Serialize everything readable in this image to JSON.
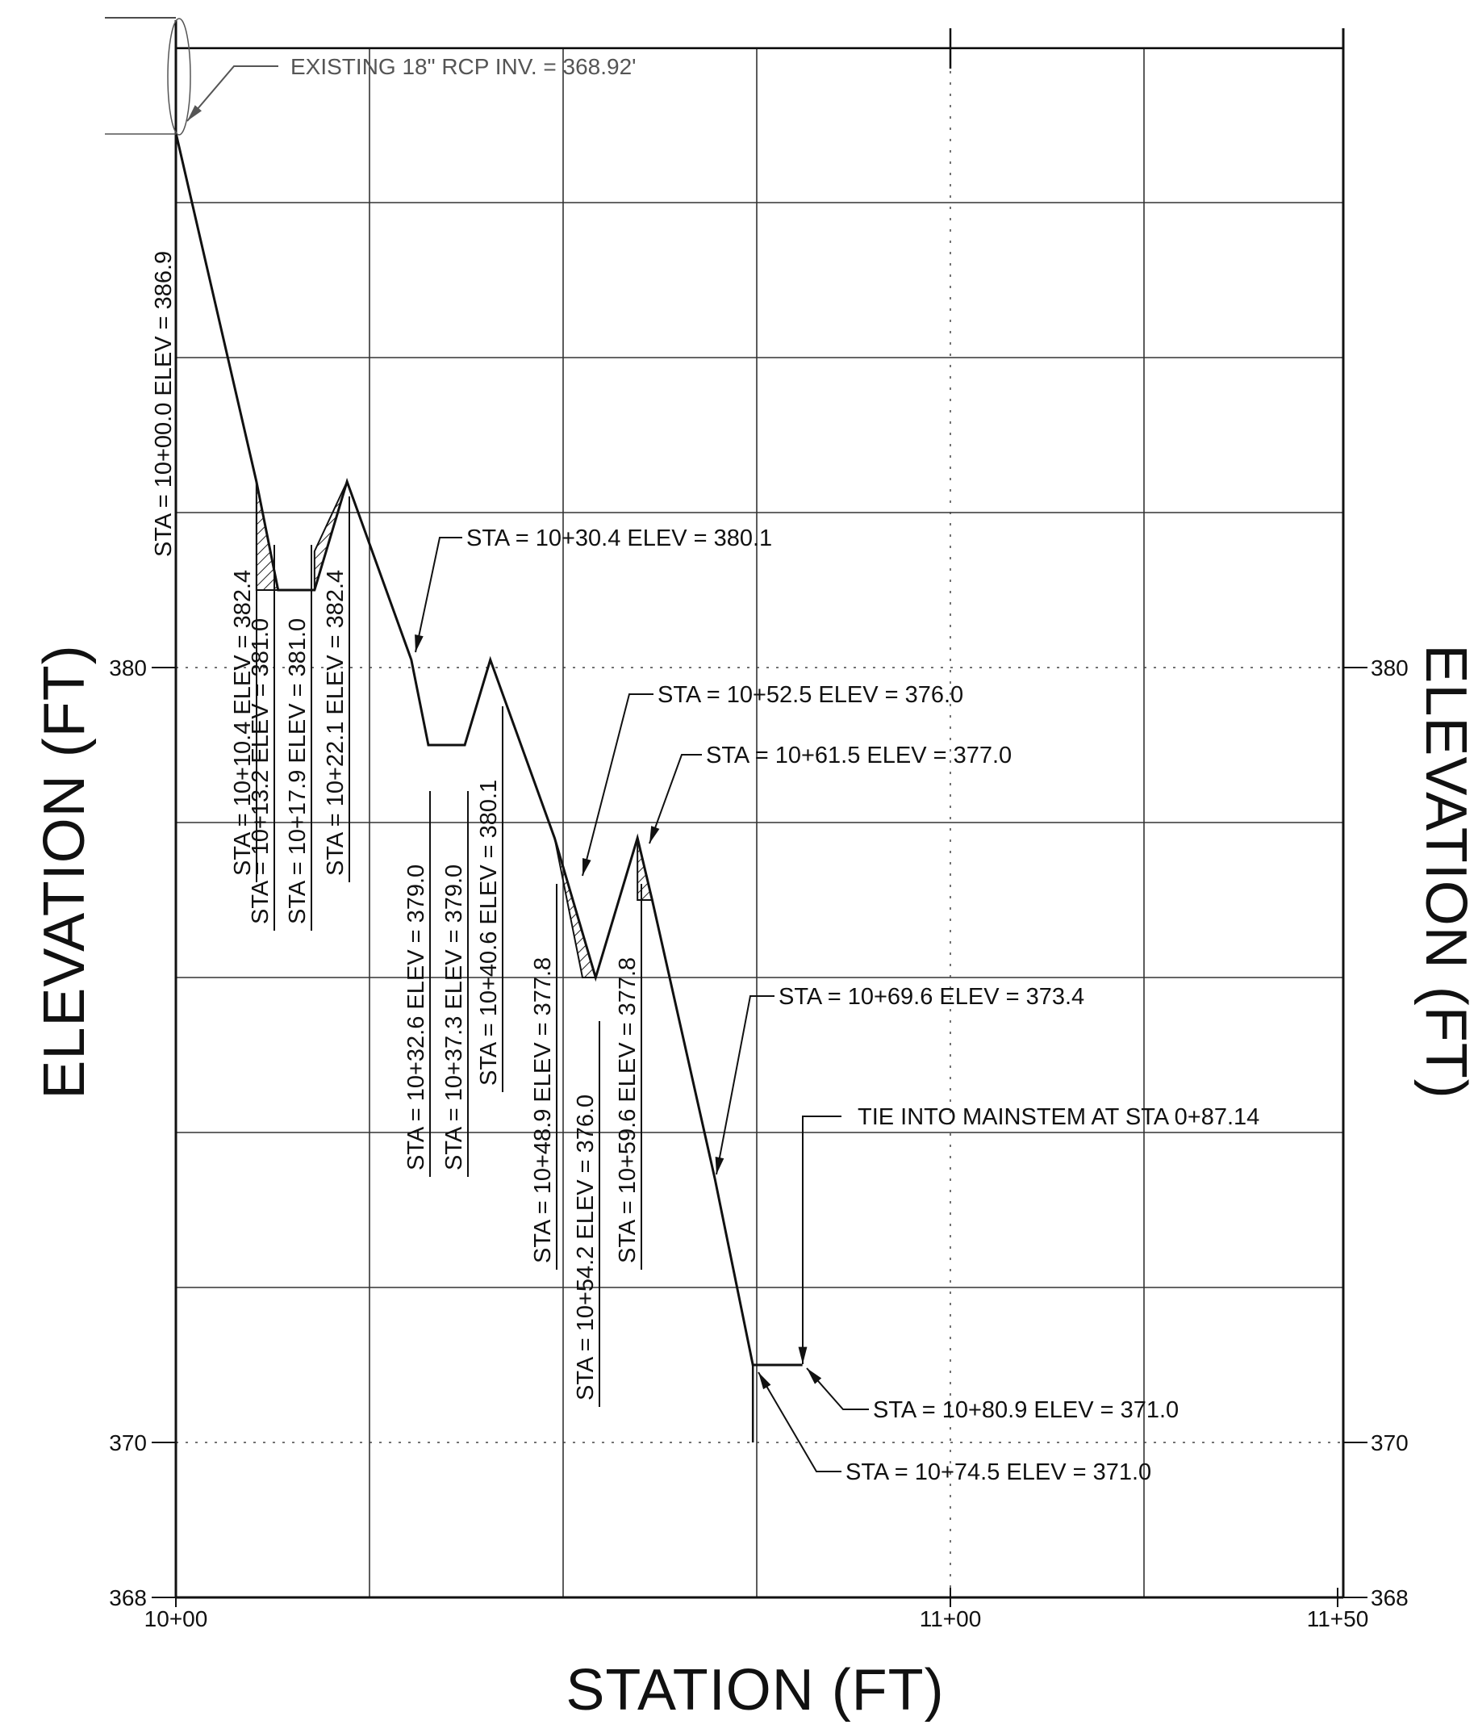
{
  "chart_data": {
    "type": "line",
    "xlabel": "STATION (FT)",
    "ylabel_left": "ELEVATION (FT)",
    "ylabel_right": "ELEVATION (FT)",
    "x_ticks": [
      {
        "x": 1000,
        "label": "10+00"
      },
      {
        "x": 1100,
        "label": "11+00"
      },
      {
        "x": 1150,
        "label": "11+50"
      }
    ],
    "y_ticks_left": [
      {
        "y": 368,
        "label": "368"
      },
      {
        "y": 370,
        "label": "370"
      },
      {
        "y": 380,
        "label": "380"
      }
    ],
    "y_ticks_right": [
      {
        "y": 368,
        "label": "368"
      },
      {
        "y": 370,
        "label": "370"
      },
      {
        "y": 380,
        "label": "380"
      }
    ],
    "xlim": [
      1000,
      1150
    ],
    "ylim": [
      368,
      390
    ],
    "grid": true,
    "profile": {
      "x": [
        1000.0,
        1010.4,
        1013.2,
        1017.9,
        1022.1,
        1030.4,
        1032.6,
        1037.3,
        1040.6,
        1048.9,
        1054.2,
        1059.6,
        1061.5,
        1069.6,
        1074.5,
        1080.9
      ],
      "y": [
        386.9,
        382.4,
        381.0,
        381.0,
        382.4,
        380.1,
        379.0,
        379.0,
        380.1,
        377.8,
        376.0,
        377.8,
        377.0,
        373.4,
        371.0,
        371.0
      ]
    },
    "bottom_profile": {
      "x": [
        1000.0,
        1010.4,
        1010.4,
        1017.9,
        1017.9,
        1022.1,
        1030.4,
        1032.6,
        1037.3,
        1037.3,
        1040.6,
        1048.9,
        1052.5,
        1054.2,
        1059.6,
        1059.6,
        1061.5,
        1069.6,
        1074.5
      ],
      "y": [
        386.9,
        382.4,
        381.0,
        381.0,
        381.5,
        382.4,
        380.1,
        379.0,
        379.0,
        379.0,
        380.1,
        377.8,
        376.0,
        376.0,
        377.8,
        377.0,
        377.0,
        373.4,
        371.0
      ]
    },
    "annotations": [
      {
        "text": "EXISTING 18\" RCP INV. = 368.92'"
      },
      {
        "text": "STA = 10+30.4 ELEV =  380.1"
      },
      {
        "text": "STA = 10+52.5 ELEV =  376.0"
      },
      {
        "text": "STA = 10+61.5 ELEV =  377.0"
      },
      {
        "text": "STA = 10+69.6 ELEV =  373.4"
      },
      {
        "text": "TIE INTO MAINSTEM AT STA 0+87.14"
      },
      {
        "text": "STA = 10+80.9 ELEV =  371.0"
      },
      {
        "text": "STA = 10+74.5 ELEV =  371.0"
      }
    ],
    "vertical_labels": [
      {
        "text": "STA = 10+00.0 ELEV =  386.9"
      },
      {
        "text": "STA = 10+10.4 ELEV =  382.4"
      },
      {
        "text": "STA = 10+13.2 ELEV =  381.0"
      },
      {
        "text": "STA = 10+17.9 ELEV =  381.0"
      },
      {
        "text": "STA = 10+22.1 ELEV =  382.4"
      },
      {
        "text": "STA = 10+32.6 ELEV =  379.0"
      },
      {
        "text": "STA = 10+37.3 ELEV =  379.0"
      },
      {
        "text": "STA = 10+40.6 ELEV =  380.1"
      },
      {
        "text": "STA = 10+48.9 ELEV =  377.8"
      },
      {
        "text": "STA = 10+54.2 ELEV =  376.0"
      },
      {
        "text": "STA = 10+59.6 ELEV =  377.8"
      }
    ]
  }
}
